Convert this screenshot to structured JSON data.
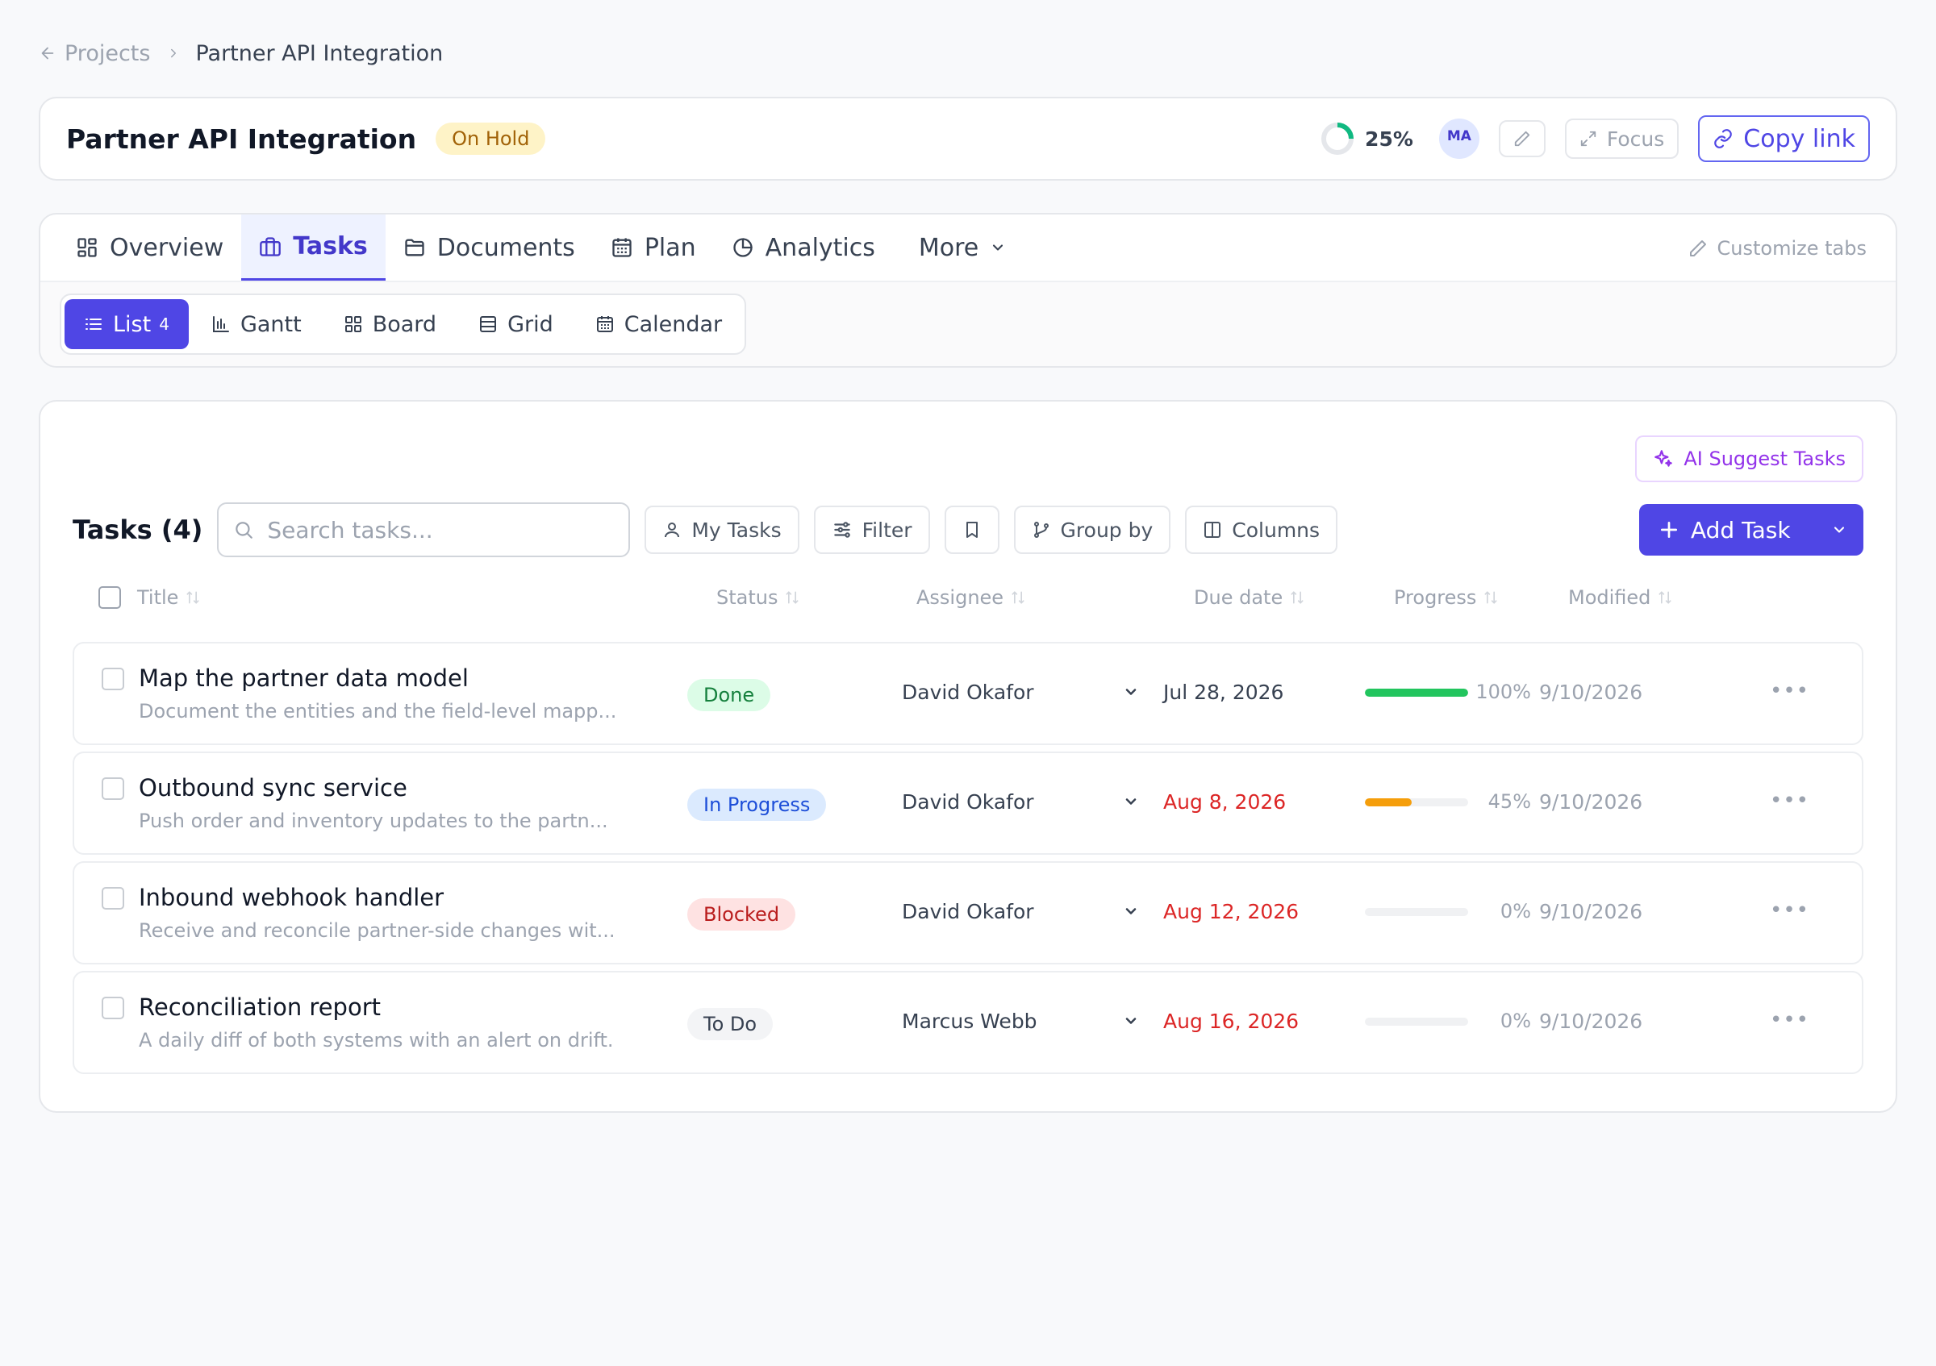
{
  "breadcrumb": {
    "parent": "Projects",
    "current": "Partner API Integration"
  },
  "header": {
    "title": "Partner API Integration",
    "status": "On Hold",
    "progress": "25%",
    "progress_value": 0.25,
    "avatar": "MA",
    "focus_label": "Focus",
    "copy_link_label": "Copy link"
  },
  "tabs": {
    "items": [
      {
        "label": "Overview",
        "icon": "grid-icon"
      },
      {
        "label": "Tasks",
        "icon": "briefcase-icon",
        "active": true
      },
      {
        "label": "Documents",
        "icon": "folder-icon"
      },
      {
        "label": "Plan",
        "icon": "calendar-icon"
      },
      {
        "label": "Analytics",
        "icon": "pie-chart-icon"
      }
    ],
    "more_label": "More",
    "customize_label": "Customize tabs"
  },
  "views": {
    "items": [
      {
        "label": "List",
        "count": "4",
        "icon": "list-icon",
        "active": true
      },
      {
        "label": "Gantt",
        "icon": "bar-chart-icon"
      },
      {
        "label": "Board",
        "icon": "board-icon"
      },
      {
        "label": "Grid",
        "icon": "table-icon"
      },
      {
        "label": "Calendar",
        "icon": "calendar-icon"
      }
    ]
  },
  "tasks": {
    "ai_suggest_label": "AI Suggest Tasks",
    "heading": "Tasks (4)",
    "search_placeholder": "Search tasks...",
    "my_tasks_label": "My Tasks",
    "filter_label": "Filter",
    "group_by_label": "Group by",
    "columns_label": "Columns",
    "add_task_label": "Add Task",
    "columns": {
      "title": "Title",
      "status": "Status",
      "assignee": "Assignee",
      "due_date": "Due date",
      "progress": "Progress",
      "modified": "Modified"
    },
    "rows": [
      {
        "title": "Map the partner data model",
        "description": "Document the entities and the field-level mapp...",
        "status": "Done",
        "assignee": "David Okafor",
        "due": "Jul 28, 2026",
        "overdue": false,
        "progress": "100%",
        "progress_value": 1.0,
        "modified": "9/10/2026"
      },
      {
        "title": "Outbound sync service",
        "description": "Push order and inventory updates to the partn...",
        "status": "In Progress",
        "assignee": "David Okafor",
        "due": "Aug 8, 2026",
        "overdue": true,
        "progress": "45%",
        "progress_value": 0.45,
        "modified": "9/10/2026"
      },
      {
        "title": "Inbound webhook handler",
        "description": "Receive and reconcile partner-side changes wit...",
        "status": "Blocked",
        "assignee": "David Okafor",
        "due": "Aug 12, 2026",
        "overdue": true,
        "progress": "0%",
        "progress_value": 0.0,
        "modified": "9/10/2026"
      },
      {
        "title": "Reconciliation report",
        "description": "A daily diff of both systems with an alert on drift.",
        "status": "To Do",
        "assignee": "Marcus Webb",
        "due": "Aug 16, 2026",
        "overdue": true,
        "progress": "0%",
        "progress_value": 0.0,
        "modified": "9/10/2026"
      }
    ]
  },
  "colors": {
    "accent": "#4f46e5",
    "done": "#22c55e",
    "in_progress": "#f59e0b",
    "overdue": "#dc2626",
    "ring": "#10b981"
  }
}
